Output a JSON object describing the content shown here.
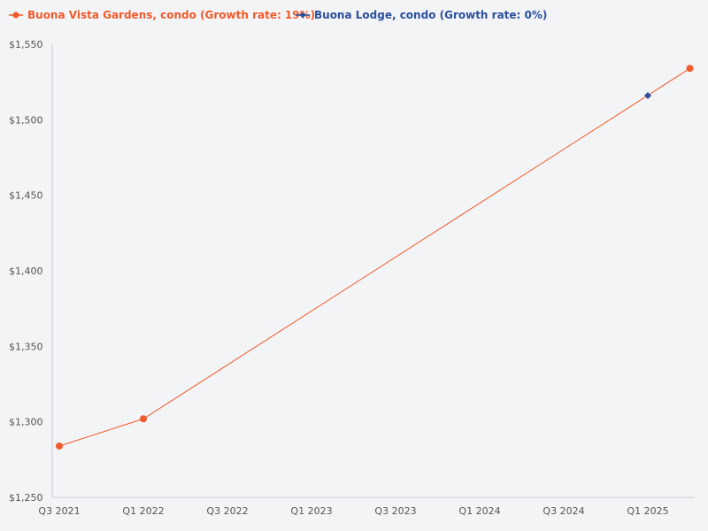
{
  "chart_data": {
    "type": "line",
    "x_ticks": [
      "Q3 2021",
      "Q1 2022",
      "Q3 2022",
      "Q1 2023",
      "Q3 2023",
      "Q1 2024",
      "Q3 2024",
      "Q1 2025"
    ],
    "y_ticks": [
      "$1,550",
      "$1,500",
      "$1,450",
      "$1,400",
      "$1,350",
      "$1,300",
      "$1,250"
    ],
    "ylim": [
      1250,
      1550
    ],
    "grid": false,
    "legend_position": "top-left",
    "series": [
      {
        "name": "Buona Vista Gardens, condo (Growth rate: 19%)",
        "color": "#f15a2b",
        "marker": "circle",
        "points": [
          {
            "x": "Q3 2021",
            "y": 1284
          },
          {
            "x": "Q1 2022",
            "y": 1302
          },
          {
            "x": "Q2 2025",
            "y": 1534
          }
        ]
      },
      {
        "name": "Buona Lodge, condo (Growth rate: 0%)",
        "color": "#2b4f9e",
        "marker": "diamond",
        "points": [
          {
            "x": "Q1 2025",
            "y": 1516
          }
        ]
      }
    ]
  }
}
